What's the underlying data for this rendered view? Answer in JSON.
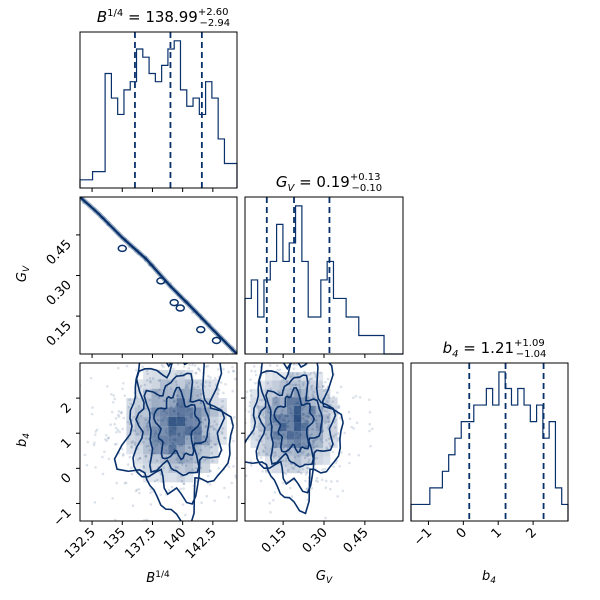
{
  "chart_data": {
    "type": "corner",
    "parameters": [
      {
        "key": "B",
        "label": "B^{1/4}",
        "range": [
          131.5,
          144.5
        ],
        "ticks": [
          132.5,
          135.0,
          137.5,
          140.0,
          142.5
        ],
        "median": 138.99,
        "plus": 2.6,
        "minus": 2.94,
        "q16": 136.05,
        "q84": 141.59,
        "title": {
          "name": "B",
          "sup": "1/4",
          "value": "138.99",
          "plus": "+2.60",
          "minus": "−2.94"
        }
      },
      {
        "key": "G",
        "label": "G_V",
        "range": [
          0.01,
          0.59
        ],
        "ticks": [
          0.15,
          0.3,
          0.45
        ],
        "median": 0.19,
        "plus": 0.13,
        "minus": 0.1,
        "q16": 0.09,
        "q84": 0.32,
        "title": {
          "name": "G",
          "sub": "V",
          "value": "0.19",
          "plus": "+0.13",
          "minus": "−0.10"
        }
      },
      {
        "key": "b4",
        "label": "b_4",
        "range": [
          -1.5,
          3.0
        ],
        "ticks": [
          -1,
          0,
          1,
          2
        ],
        "median": 1.21,
        "plus": 1.09,
        "minus": 1.04,
        "q16": 0.17,
        "q84": 2.3,
        "title": {
          "name": "b",
          "sub": "4",
          "value": "1.21",
          "plus": "+1.09",
          "minus": "−1.04"
        }
      }
    ],
    "histograms": {
      "B": [
        1,
        1,
        2,
        2,
        14,
        11,
        9,
        12,
        13,
        17,
        16,
        14,
        13,
        15,
        17,
        18,
        12,
        10,
        11,
        9,
        13,
        11,
        6,
        3,
        3
      ],
      "G": [
        3,
        4,
        2,
        4,
        5,
        7,
        5,
        6,
        8,
        5,
        2,
        2,
        4,
        5,
        3,
        3,
        2,
        2,
        1,
        1,
        1,
        1,
        0,
        0,
        0
      ],
      "b4": [
        1,
        1,
        1,
        2,
        2,
        3,
        4,
        5,
        6,
        6,
        7,
        7,
        8,
        7,
        9,
        8,
        7,
        8,
        7,
        6,
        7,
        5,
        6,
        2,
        1
      ]
    },
    "pairs": {
      "G_vs_B": {
        "type": "line",
        "x": [
          131.5,
          133.0,
          135.0,
          137.0,
          139.0,
          141.0,
          142.5,
          144.5
        ],
        "y": [
          0.59,
          0.53,
          0.44,
          0.36,
          0.26,
          0.17,
          0.1,
          0.01
        ]
      },
      "b4_vs_B": {
        "type": "density",
        "center": [
          139.5,
          1.2
        ],
        "spread": [
          2.6,
          1.0
        ]
      },
      "b4_vs_G": {
        "type": "density",
        "center": [
          0.19,
          1.3
        ],
        "spread": [
          0.1,
          0.9
        ]
      }
    }
  }
}
